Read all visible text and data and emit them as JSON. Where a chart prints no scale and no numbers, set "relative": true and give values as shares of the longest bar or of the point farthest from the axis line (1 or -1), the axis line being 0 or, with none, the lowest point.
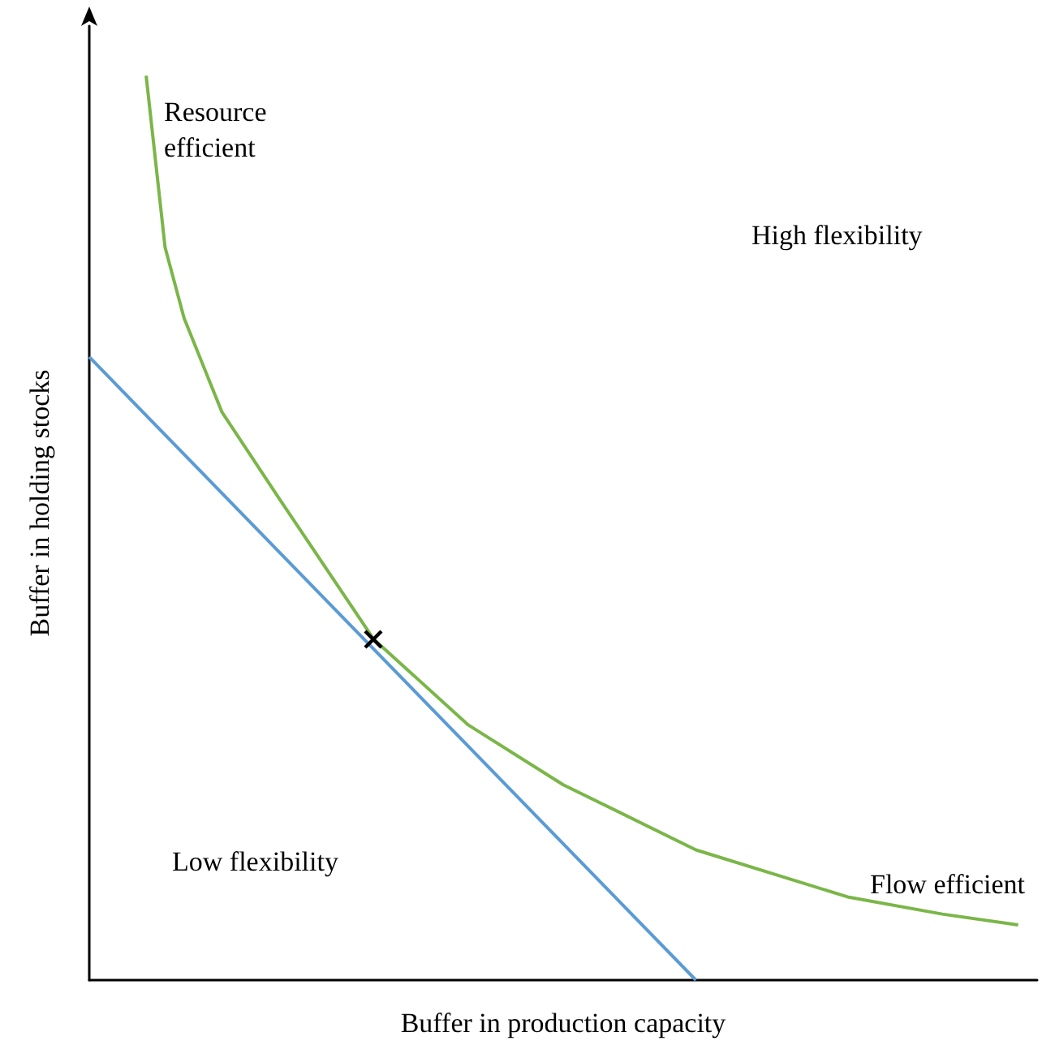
{
  "chart_data": {
    "type": "line",
    "relative": true,
    "xlabel": "Buffer in production capacity",
    "ylabel": "Buffer in holding stocks",
    "marker": "none",
    "categories": [
      null,
      null,
      null,
      null,
      null,
      null,
      null,
      null,
      null,
      null,
      null,
      null,
      null,
      null,
      null,
      null,
      null,
      null,
      null,
      null,
      null,
      null,
      null,
      null,
      null,
      null,
      null,
      null,
      null,
      null,
      null,
      null,
      null,
      null,
      null,
      null,
      null,
      null,
      null,
      null,
      null,
      null,
      null,
      null,
      null,
      null,
      null,
      null,
      null,
      null,
      null
    ],
    "series": [
      {
        "color": "#7ab648",
        "values": [
          null,
          null,
          null,
          1,
          0.81,
          0.732,
          null,
          0.628,
          null,
          null,
          0.533,
          null,
          null,
          null,
          null,
          0.377,
          null,
          null,
          null,
          null,
          0.282,
          null,
          null,
          null,
          null,
          0.216,
          null,
          null,
          null,
          null,
          null,
          null,
          0.144,
          null,
          null,
          null,
          null,
          null,
          null,
          null,
          0.092,
          null,
          null,
          null,
          null,
          0.073,
          null,
          null,
          null,
          0.061,
          null
        ]
      },
      {
        "color": "#5b9bd5",
        "values": [
          0.689,
          null,
          null,
          null,
          null,
          null,
          null,
          null,
          null,
          null,
          null,
          null,
          null,
          null,
          null,
          null,
          null,
          null,
          null,
          null,
          null,
          null,
          null,
          null,
          null,
          null,
          null,
          null,
          null,
          null,
          null,
          null,
          0,
          null,
          null,
          null,
          null,
          null,
          null,
          null,
          null,
          null,
          null,
          null,
          null,
          null,
          null,
          null,
          null,
          null,
          null
        ]
      }
    ],
    "annotations": [
      "Resource\nefficient",
      "High flexibility",
      "Low flexibility",
      "Flow efficient"
    ]
  }
}
